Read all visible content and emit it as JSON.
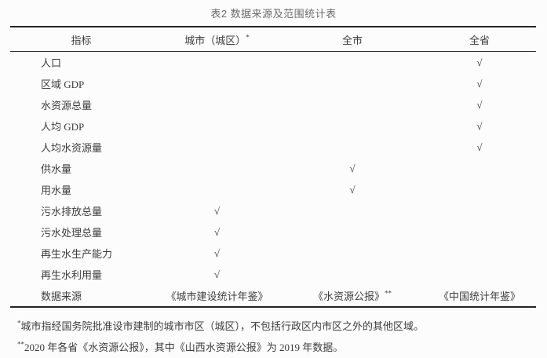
{
  "title": "表2 数据来源及范围统计表",
  "table": {
    "columns": [
      {
        "label": "指标",
        "sup": ""
      },
      {
        "label": "城市（城区）",
        "sup": "*"
      },
      {
        "label": "全市",
        "sup": ""
      },
      {
        "label": "全省",
        "sup": ""
      }
    ],
    "check_mark": "√",
    "rows": [
      {
        "indicator": "人口",
        "city": "",
        "citywide": "",
        "province": "√"
      },
      {
        "indicator": "区域 GDP",
        "city": "",
        "citywide": "",
        "province": "√"
      },
      {
        "indicator": "水资源总量",
        "city": "",
        "citywide": "",
        "province": "√"
      },
      {
        "indicator": "人均 GDP",
        "city": "",
        "citywide": "",
        "province": "√"
      },
      {
        "indicator": "人均水资源量",
        "city": "",
        "citywide": "",
        "province": "√"
      },
      {
        "indicator": "供水量",
        "city": "",
        "citywide": "√",
        "province": ""
      },
      {
        "indicator": "用水量",
        "city": "",
        "citywide": "√",
        "province": ""
      },
      {
        "indicator": "污水排放总量",
        "city": "√",
        "citywide": "",
        "province": ""
      },
      {
        "indicator": "污水处理总量",
        "city": "√",
        "citywide": "",
        "province": ""
      },
      {
        "indicator": "再生水生产能力",
        "city": "√",
        "citywide": "",
        "province": ""
      },
      {
        "indicator": "再生水利用量",
        "city": "√",
        "citywide": "",
        "province": ""
      },
      {
        "indicator": "数据来源",
        "city": "《城市建设统计年鉴》",
        "citywide": "《水资源公报》",
        "citywide_sup": "**",
        "province": "《中国统计年鉴》"
      }
    ]
  },
  "footnotes": [
    {
      "marker": "*",
      "text": "城市指经国务院批准设市建制的城市市区（城区），不包括行政区内市区之外的其他区域。"
    },
    {
      "marker": "**",
      "text": "2020 年各省《水资源公报》，其中《山西水资源公报》为 2019 年数据。"
    }
  ]
}
